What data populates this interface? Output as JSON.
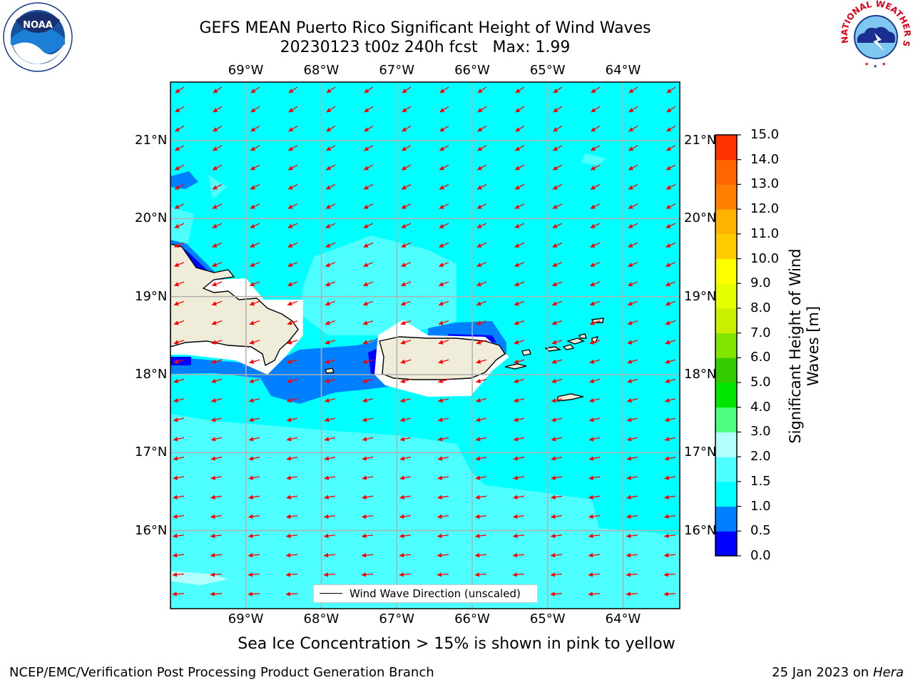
{
  "title": {
    "line1": "GEFS MEAN Puerto Rico Significant Height of Wind Waves",
    "line2": "20230123 t00z 240h fcst   Max: 1.99"
  },
  "map": {
    "lon_labels": [
      "69°W",
      "68°W",
      "67°W",
      "66°W",
      "65°W",
      "64°W"
    ],
    "lon_values": [
      -69,
      -68,
      -67,
      -66,
      -65,
      -64
    ],
    "lat_labels": [
      "21°N",
      "20°N",
      "19°N",
      "18°N",
      "17°N",
      "16°N"
    ],
    "lat_values": [
      21,
      20,
      19,
      18,
      17,
      16
    ],
    "lon_range": [
      -70,
      -63.25
    ],
    "lat_range": [
      15,
      21.75
    ],
    "legend_label": "Wind Wave Direction (unscaled)",
    "arrow_color": "#ff0000",
    "land_color": "#efecd9",
    "ocean_base_color": "#00ffff"
  },
  "colorbar": {
    "label": "Significant Height of Wind Waves [m]",
    "levels": [
      "0.0",
      "0.5",
      "1.0",
      "1.5",
      "2.0",
      "3.0",
      "4.0",
      "5.0",
      "6.0",
      "7.0",
      "8.0",
      "9.0",
      "10.0",
      "11.0",
      "12.0",
      "13.0",
      "14.0",
      "15.0"
    ],
    "colors": [
      "#0000ff",
      "#0080ff",
      "#00ffff",
      "#4dffff",
      "#b3ffff",
      "#4dff80",
      "#00e600",
      "#33cc00",
      "#80e600",
      "#c8f000",
      "#e6ff00",
      "#ffff00",
      "#ffcc00",
      "#ffb300",
      "#ff8000",
      "#ff6600",
      "#ff3300",
      "#ff0000"
    ]
  },
  "sea_ice_note": "Sea Ice Concentration > 15% is shown in pink to yellow",
  "footer": {
    "left": "NCEP/EMC/Verification Post Processing Product Generation Branch",
    "right_date": "25 Jan 2023 on ",
    "right_host": "Hera"
  },
  "logos": {
    "left": "NOAA",
    "right": "NATIONAL WEATHER SERVICE"
  }
}
